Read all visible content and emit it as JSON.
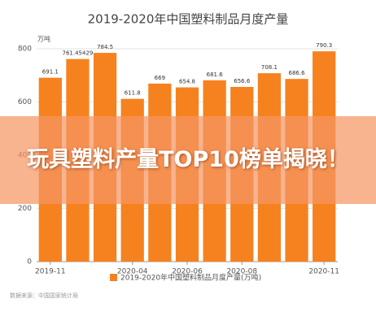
{
  "chart_data": {
    "type": "bar",
    "title": "2019-2020年中国塑料制品月度产量",
    "y_label": "万吨",
    "categories": [
      "2019-11",
      null,
      null,
      "2020-04",
      null,
      "2020-06",
      null,
      "2020-08",
      null,
      null,
      "2020-11"
    ],
    "values": [
      691.1,
      761.45429,
      784.5,
      611.8,
      669,
      654.8,
      681.6,
      656.6,
      708.1,
      686.6,
      790.3
    ],
    "color": "#f5821f",
    "ylim": [
      0,
      800
    ],
    "yticks": [
      0,
      200,
      400,
      600,
      800
    ],
    "grid": true,
    "legend": "2019-2020年中国塑料制品月度产量(万吨)",
    "source": "数据来源：中国国家统计局"
  },
  "overlay": {
    "headline": "玩具塑料产量TOP10榜单揭晓！"
  }
}
